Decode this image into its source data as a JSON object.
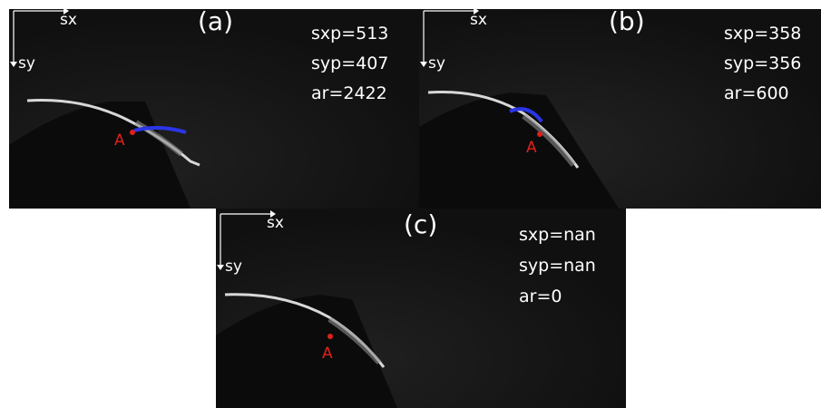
{
  "axis_labels": {
    "x": "sx",
    "y": "sy"
  },
  "point_label": "A",
  "colors": {
    "background": "#121212",
    "text": "#ffffff",
    "point": "#e0201c",
    "detection": "#2030e0"
  },
  "panels": [
    {
      "label": "(a)",
      "sxp": "sxp=513",
      "syp": "syp=407",
      "ar": "ar=2422"
    },
    {
      "label": "(b)",
      "sxp": "sxp=358",
      "syp": "syp=356",
      "ar": "ar=600"
    },
    {
      "label": "(c)",
      "sxp": "sxp=nan",
      "syp": "syp=nan",
      "ar": "ar=0"
    }
  ]
}
